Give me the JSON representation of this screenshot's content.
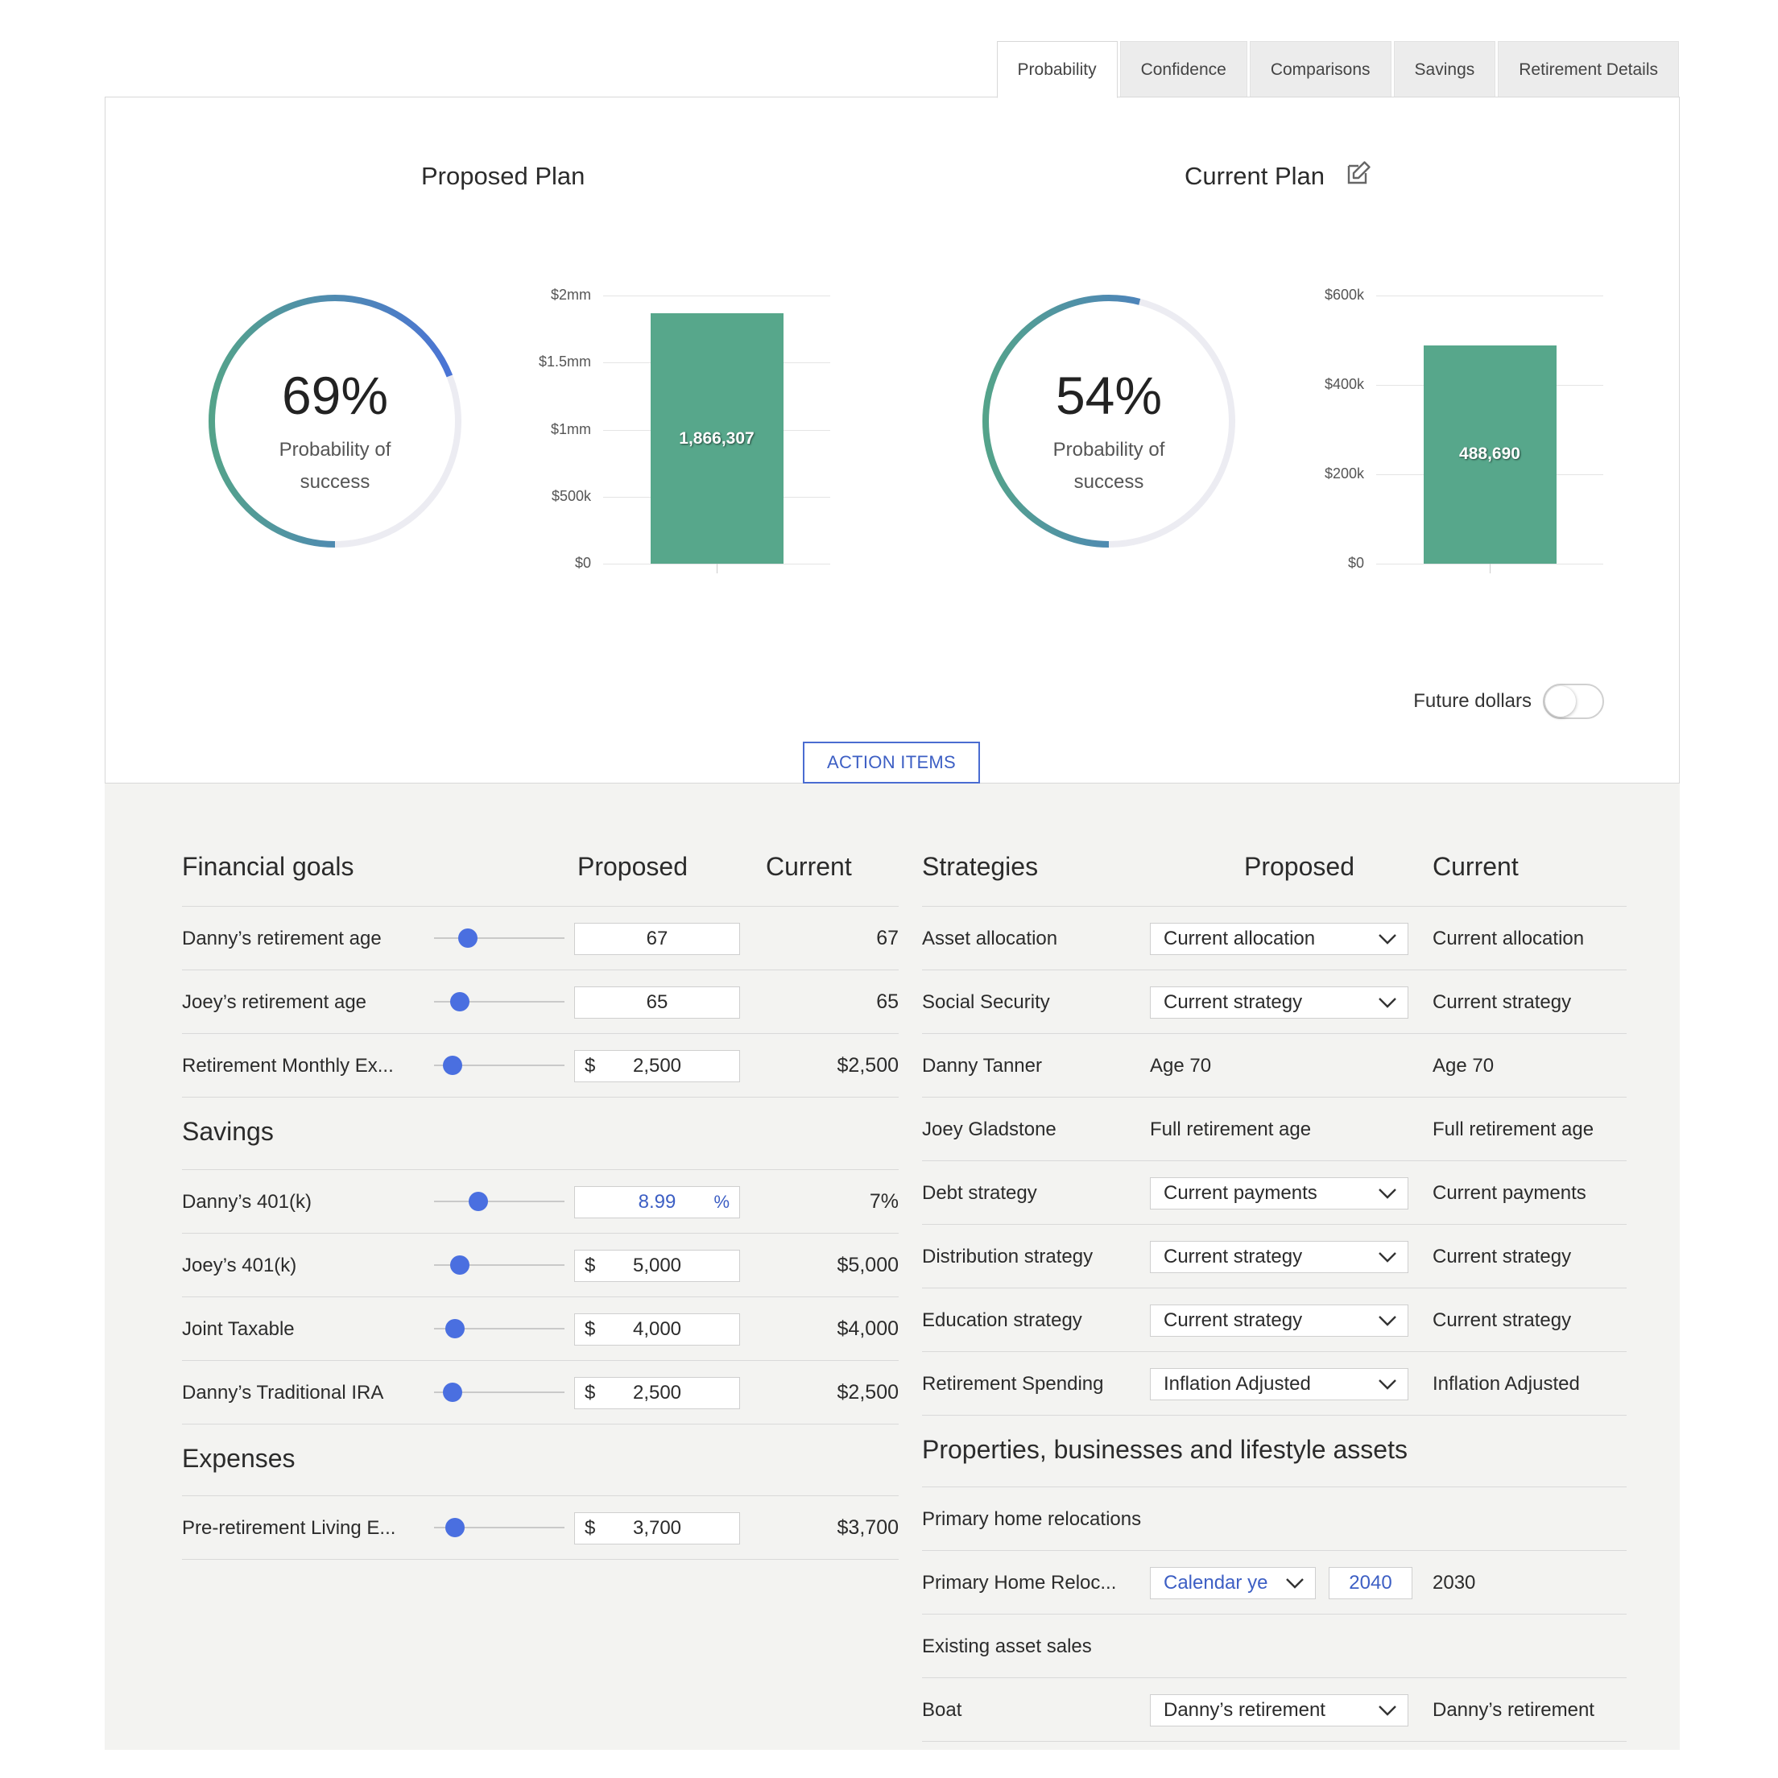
{
  "tabs": [
    "Probability",
    "Confidence",
    "Comparisons",
    "Savings",
    "Retirement Details"
  ],
  "proposed": {
    "title": "Proposed Plan",
    "percent": "69%",
    "percent_value": 69,
    "sub_line1": "Probability of",
    "sub_line2": "success",
    "bar_label": "1,866,307",
    "ticks": [
      "$2mm",
      "$1.5mm",
      "$1mm",
      "$500k",
      "$0"
    ]
  },
  "current": {
    "title": "Current Plan",
    "percent": "54%",
    "percent_value": 54,
    "sub_line1": "Probability of",
    "sub_line2": "success",
    "bar_label": "488,690",
    "ticks": [
      "$600k",
      "$400k",
      "$200k",
      "$0"
    ]
  },
  "chart_data": [
    {
      "type": "bar",
      "categories": [
        ""
      ],
      "values": [
        1866307
      ],
      "ylim": [
        0,
        2000000
      ],
      "tick_labels": [
        "$0",
        "$500k",
        "$1mm",
        "$1.5mm",
        "$2mm"
      ],
      "data_labels": [
        "1,866,307"
      ]
    },
    {
      "type": "bar",
      "categories": [
        ""
      ],
      "values": [
        488690
      ],
      "ylim": [
        0,
        600000
      ],
      "tick_labels": [
        "$0",
        "$200k",
        "$400k",
        "$600k"
      ],
      "data_labels": [
        "488,690"
      ]
    }
  ],
  "future_dollars_label": "Future dollars",
  "future_dollars_on": false,
  "action_items_label": "ACTION ITEMS",
  "colors": {
    "accent": "#4a6fe0",
    "bar": "#57a78b",
    "gauge_track": "#ececf2"
  },
  "left": {
    "header": {
      "title": "Financial goals",
      "proposed": "Proposed",
      "current": "Current"
    },
    "goals": [
      {
        "label": "Danny’s retirement age",
        "value": "67",
        "prefix": "",
        "suffix": "",
        "current": "67",
        "slider": 0.26
      },
      {
        "label": "Joey’s retirement age",
        "value": "65",
        "prefix": "",
        "suffix": "",
        "current": "65",
        "slider": 0.2
      },
      {
        "label": "Retirement Monthly Ex...",
        "value": "2,500",
        "prefix": "$",
        "suffix": "",
        "current": "$2,500",
        "slider": 0.14
      }
    ],
    "savings_title": "Savings",
    "savings": [
      {
        "label": "Danny’s 401(k)",
        "value": "8.99",
        "prefix": "",
        "suffix": "%",
        "current": "7%",
        "slider": 0.34
      },
      {
        "label": "Joey’s 401(k)",
        "value": "5,000",
        "prefix": "$",
        "suffix": "",
        "current": "$5,000",
        "slider": 0.2
      },
      {
        "label": "Joint Taxable",
        "value": "4,000",
        "prefix": "$",
        "suffix": "",
        "current": "$4,000",
        "slider": 0.16
      },
      {
        "label": "Danny’s Traditional IRA",
        "value": "2,500",
        "prefix": "$",
        "suffix": "",
        "current": "$2,500",
        "slider": 0.14
      }
    ],
    "expenses_title": "Expenses",
    "expenses": [
      {
        "label": "Pre-retirement Living E...",
        "value": "3,700",
        "prefix": "$",
        "suffix": "",
        "current": "$3,700",
        "slider": 0.16
      }
    ]
  },
  "right": {
    "header": {
      "title": "Strategies",
      "proposed": "Proposed",
      "current": "Current"
    },
    "strategies": [
      {
        "label": "Asset allocation",
        "proposed": "Current allocation",
        "dropdown": true,
        "current": "Current allocation"
      },
      {
        "label": "Social Security",
        "proposed": "Current strategy",
        "dropdown": true,
        "current": "Current strategy"
      },
      {
        "label": "Danny Tanner",
        "proposed": "Age 70",
        "dropdown": false,
        "current": "Age 70"
      },
      {
        "label": "Joey Gladstone",
        "proposed": "Full retirement age",
        "dropdown": false,
        "current": "Full retirement age"
      },
      {
        "label": "Debt strategy",
        "proposed": "Current payments",
        "dropdown": true,
        "current": "Current payments"
      },
      {
        "label": "Distribution strategy",
        "proposed": "Current strategy",
        "dropdown": true,
        "current": "Current strategy"
      },
      {
        "label": "Education strategy",
        "proposed": "Current strategy",
        "dropdown": true,
        "current": "Current strategy"
      },
      {
        "label": "Retirement Spending",
        "proposed": "Inflation Adjusted",
        "dropdown": true,
        "current": "Inflation Adjusted"
      }
    ],
    "assets_title": "Properties, businesses and lifestyle assets",
    "relocations_title": "Primary home relocations",
    "relocation": {
      "label": "Primary Home Reloc...",
      "select": "Calendar ye",
      "year": "2040",
      "current": "2030"
    },
    "sales_title": "Existing asset sales",
    "boat": {
      "label": "Boat",
      "proposed": "Danny’s retirement",
      "current": "Danny’s retirement"
    }
  }
}
